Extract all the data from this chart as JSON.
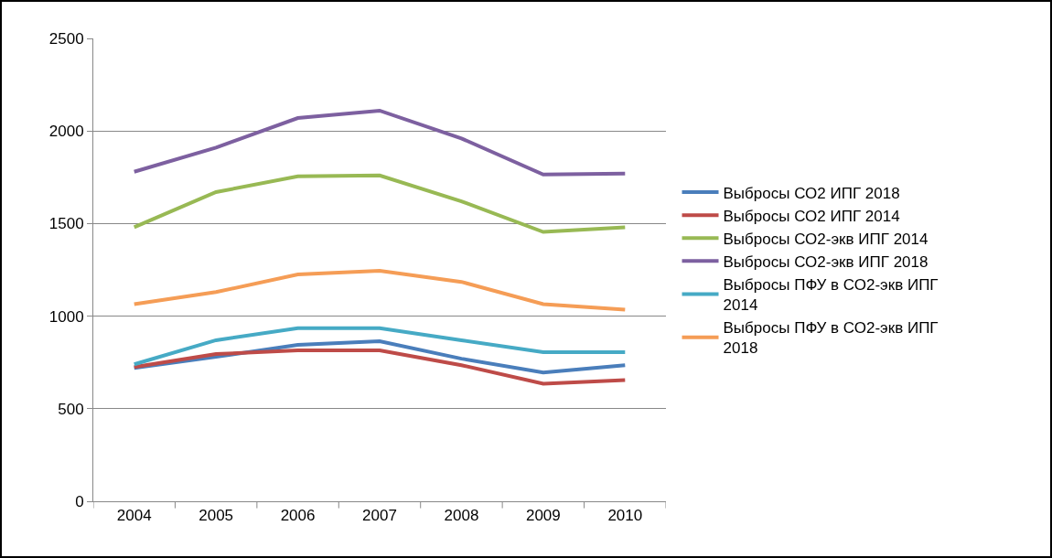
{
  "chart_data": {
    "type": "line",
    "categories": [
      "2004",
      "2005",
      "2006",
      "2007",
      "2008",
      "2009",
      "2010"
    ],
    "series": [
      {
        "name": "Выбросы СО2 ИПГ 2018",
        "color": "#4a7ebb",
        "values": [
          720,
          780,
          845,
          865,
          770,
          695,
          735
        ]
      },
      {
        "name": "Выбросы СО2 ИПГ 2014",
        "color": "#be4b48",
        "values": [
          725,
          795,
          815,
          815,
          735,
          635,
          655
        ]
      },
      {
        "name": "Выбросы СО2-экв ИПГ 2014",
        "color": "#98b954",
        "values": [
          1480,
          1670,
          1755,
          1760,
          1620,
          1455,
          1480
        ]
      },
      {
        "name": "Выбросы СО2-экв ИПГ 2018",
        "color": "#7d60a0",
        "values": [
          1780,
          1910,
          2070,
          2110,
          1960,
          1765,
          1770
        ]
      },
      {
        "name": "Выбросы ПФУ в СО2-экв ИПГ 2014",
        "color": "#46aac5",
        "values": [
          740,
          870,
          935,
          935,
          870,
          805,
          805
        ]
      },
      {
        "name": "Выбросы ПФУ в СО2-экв ИПГ 2018",
        "color": "#f59d56",
        "values": [
          1065,
          1130,
          1225,
          1245,
          1185,
          1065,
          1035
        ]
      }
    ],
    "ylim": [
      0,
      2500
    ],
    "yticks": [
      0,
      500,
      1000,
      1500,
      2000,
      2500
    ],
    "grid": "y",
    "legend": "right",
    "marker": "none",
    "line_style": "solid"
  }
}
